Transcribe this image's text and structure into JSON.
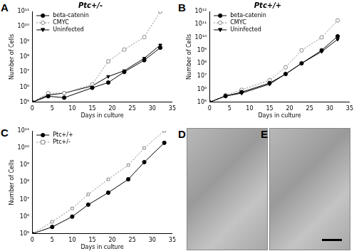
{
  "chart_data": [
    {
      "type": "line",
      "panel_label": "A",
      "title": "Ptc+/-",
      "x_label": "Days in culture",
      "y_label": "Number of Cells",
      "log": "y",
      "grid": false,
      "legend": "upper left",
      "x": [
        0,
        4,
        8,
        15,
        19,
        23,
        28,
        32
      ],
      "xlim": [
        0,
        35
      ],
      "xticks": [
        0,
        5,
        10,
        15,
        20,
        25,
        30,
        35
      ],
      "ylim": [
        100000,
        100000000000
      ],
      "yticks": [
        {
          "value": 100000,
          "label": "10⁵"
        },
        {
          "value": 1000000,
          "label": "10⁶"
        },
        {
          "value": 10000000,
          "label": "10⁷"
        },
        {
          "value": 100000000,
          "label": "10⁸"
        },
        {
          "value": 1000000000,
          "label": "10⁹"
        },
        {
          "value": 10000000000,
          "label": "10¹⁰"
        },
        {
          "value": 100000000000,
          "label": "10¹¹"
        }
      ],
      "series": [
        {
          "name": "beta-catenin",
          "color": "#000000",
          "marker": "circle",
          "line_style": "solid",
          "values": [
            100000,
            250000,
            200000,
            900000,
            2000000,
            10000000,
            60000000,
            400000000
          ]
        },
        {
          "name": "CMYC",
          "color": "#888888",
          "marker": "open_circle",
          "line_style": "dotted",
          "values": [
            100000,
            400000,
            400000,
            1500000,
            50000000,
            300000000,
            2000000000,
            100000000000
          ]
        },
        {
          "name": "Uninfected",
          "color": "#000000",
          "marker": "triangle_down",
          "line_style": "solid",
          "values": [
            100000,
            300000,
            400000,
            1200000,
            5000000,
            12000000,
            80000000,
            600000000
          ]
        }
      ]
    },
    {
      "type": "line",
      "panel_label": "B",
      "title": "Ptc+/+",
      "x_label": "Days in culture",
      "y_label": "Number of Cells",
      "log": "y",
      "grid": false,
      "legend": "upper left",
      "x": [
        0,
        4,
        8,
        15,
        19,
        23,
        28,
        32
      ],
      "xlim": [
        0,
        35
      ],
      "xticks": [
        0,
        5,
        10,
        15,
        20,
        25,
        30,
        35
      ],
      "ylim": [
        100000,
        1000000000000
      ],
      "yticks": [
        {
          "value": 100000,
          "label": "10⁵"
        },
        {
          "value": 1000000,
          "label": "10⁶"
        },
        {
          "value": 10000000,
          "label": "10⁷"
        },
        {
          "value": 100000000,
          "label": "10⁸"
        },
        {
          "value": 1000000000,
          "label": "10⁹"
        },
        {
          "value": 10000000000,
          "label": "10¹⁰"
        },
        {
          "value": 100000000000,
          "label": "10¹¹"
        },
        {
          "value": 1000000000000,
          "label": "10¹²"
        }
      ],
      "series": [
        {
          "name": "beta-catenin",
          "color": "#000000",
          "marker": "circle",
          "line_style": "solid",
          "values": [
            100000,
            300000,
            600000,
            3000000,
            15000000,
            100000000,
            1000000000,
            12000000000
          ]
        },
        {
          "name": "CMYC",
          "color": "#888888",
          "marker": "open_circle",
          "line_style": "dotted",
          "values": [
            100000,
            350000,
            900000,
            5000000,
            50000000,
            1000000000,
            10000000000,
            200000000000
          ]
        },
        {
          "name": "Uninfected",
          "color": "#000000",
          "marker": "triangle_down",
          "line_style": "solid",
          "values": [
            100000,
            300000,
            500000,
            2500000,
            15000000,
            100000000,
            800000000,
            7000000000
          ]
        }
      ]
    },
    {
      "type": "line",
      "panel_label": "C",
      "x_label": "Days in culture",
      "y_label": "Number of Cells",
      "log": "y",
      "grid": false,
      "legend": "upper left",
      "x": [
        0,
        5,
        10,
        14,
        19,
        24,
        28,
        33
      ],
      "xlim": [
        0,
        35
      ],
      "xticks": [
        0,
        5,
        10,
        15,
        20,
        25,
        30,
        35
      ],
      "ylim": [
        100000,
        100000000000
      ],
      "yticks": [
        {
          "value": 100000,
          "label": "10⁵"
        },
        {
          "value": 1000000,
          "label": "10⁶"
        },
        {
          "value": 10000000,
          "label": "10⁷"
        },
        {
          "value": 100000000,
          "label": "10⁸"
        },
        {
          "value": 1000000000,
          "label": "10⁹"
        },
        {
          "value": 10000000000,
          "label": "10¹⁰"
        },
        {
          "value": 100000000000,
          "label": "10¹¹"
        }
      ],
      "series": [
        {
          "name": "Ptc+/+",
          "color": "#000000",
          "marker": "circle",
          "line_style": "solid",
          "values": [
            100000,
            250000,
            1000000,
            5000000,
            25000000,
            150000000,
            1500000000,
            20000000000
          ]
        },
        {
          "name": "Ptc+/-",
          "color": "#888888",
          "marker": "open_square",
          "line_style": "dotted",
          "values": [
            100000,
            500000,
            3000000,
            20000000,
            150000000,
            1000000000,
            10000000000,
            100000000000
          ]
        }
      ]
    }
  ],
  "images": [
    {
      "panel_label": "D"
    },
    {
      "panel_label": "E"
    }
  ]
}
